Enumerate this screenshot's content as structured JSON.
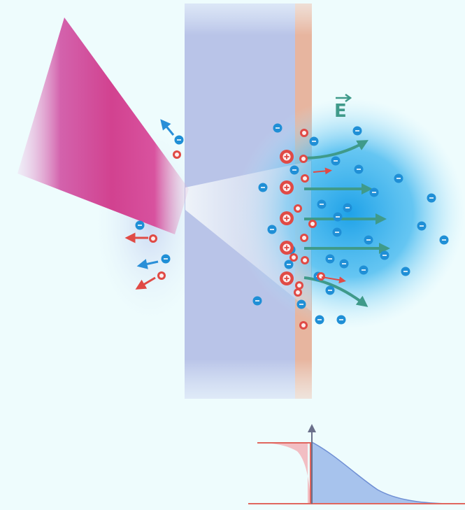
{
  "diagram": {
    "field_label": "E",
    "icons": {
      "positive_charge": "plus-in-circle",
      "negative_charge": "minus-in-circle",
      "field_arrow": "arrow-right"
    },
    "colors": {
      "background": "#eefcfd",
      "target_slab": "#b8c3e6",
      "contamination_layer": "#e9b9a4",
      "laser_beam": "#d03a8c",
      "electron_cloud": "#1fa2e8",
      "electron": "#1f8fd6",
      "ion": "#e04a45",
      "field_arrow": "#3f9a8a",
      "ion_arrow": "#e04a45",
      "electron_arrow": "#2a8fd8",
      "profile_axis": "#e0665e",
      "profile_ion_fill": "#f2b7bd",
      "profile_electron_fill": "#9ab8ea"
    }
  }
}
